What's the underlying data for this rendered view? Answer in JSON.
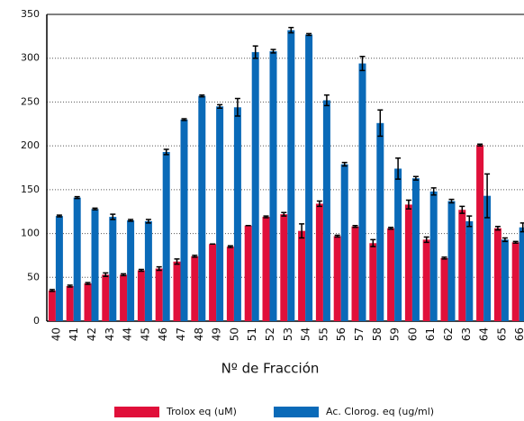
{
  "chart_data": {
    "type": "bar",
    "x_label": "Nº de Fracción",
    "categories": [
      "40",
      "41",
      "42",
      "43",
      "44",
      "45",
      "46",
      "47",
      "48",
      "49",
      "50",
      "51",
      "52",
      "53",
      "54",
      "55",
      "56",
      "57",
      "58",
      "59",
      "60",
      "61",
      "62",
      "63",
      "64",
      "65",
      "66"
    ],
    "series": [
      {
        "name": "Trolox eq (uM)",
        "color": "#e0103a",
        "values": [
          35,
          40,
          43,
          53,
          53,
          58,
          60,
          68,
          74,
          88,
          85,
          109,
          119,
          122,
          103,
          134,
          97,
          108,
          89,
          106,
          133,
          93,
          72,
          127,
          201,
          106,
          90
        ],
        "errors": [
          1,
          1,
          1,
          2,
          1,
          1,
          2,
          3,
          1,
          0,
          1,
          0,
          1,
          2,
          8,
          3,
          1,
          1,
          4,
          1,
          5,
          3,
          1,
          4,
          1,
          2,
          1
        ]
      },
      {
        "name": "Ac. Clorog. eq (ug/ml)",
        "color": "#0a6ab8",
        "values": [
          120,
          141,
          128,
          119,
          115,
          114,
          193,
          230,
          257,
          245,
          244,
          307,
          308,
          332,
          327,
          252,
          179,
          294,
          226,
          174,
          163,
          148,
          137,
          114,
          143,
          93,
          107
        ],
        "errors": [
          1,
          1,
          1,
          3,
          1,
          2,
          3,
          1,
          1,
          2,
          10,
          7,
          2,
          3,
          1,
          6,
          2,
          8,
          15,
          12,
          2,
          4,
          2,
          6,
          25,
          2,
          5
        ]
      }
    ],
    "ylim": [
      0,
      350
    ],
    "yticks": [
      0,
      50,
      100,
      150,
      200,
      250,
      300,
      350
    ],
    "grid": true
  }
}
